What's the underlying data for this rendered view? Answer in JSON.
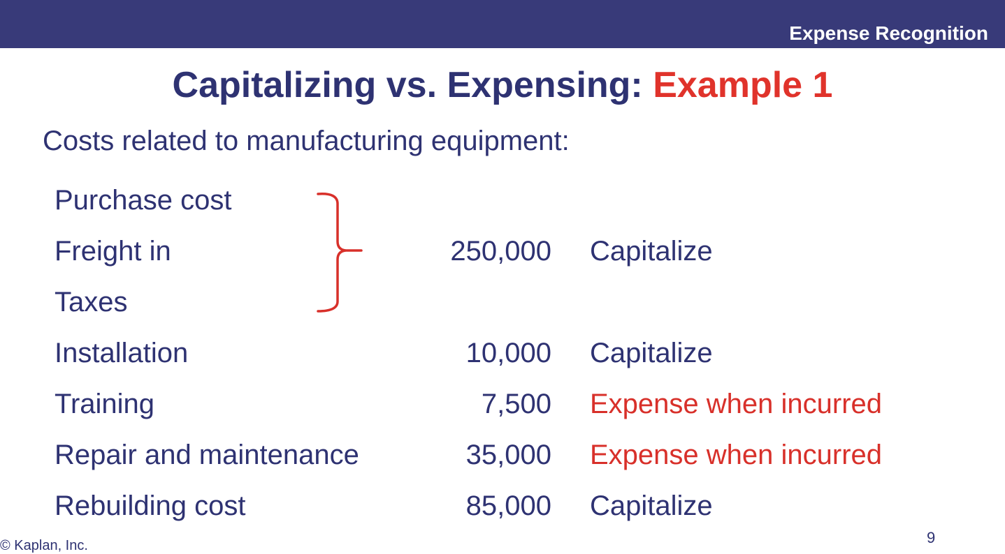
{
  "header": {
    "section_label": "Expense Recognition"
  },
  "slide": {
    "title_main": "Capitalizing vs. Expensing: ",
    "title_highlight": "Example 1",
    "subtitle": "Costs related to manufacturing equipment:"
  },
  "rows": [
    {
      "label": "Purchase cost",
      "amount": "",
      "treatment": ""
    },
    {
      "label": "Freight in",
      "amount": "250,000",
      "treatment": "Capitalize"
    },
    {
      "label": "Taxes",
      "amount": "",
      "treatment": ""
    },
    {
      "label": "Installation",
      "amount": "10,000",
      "treatment": "Capitalize"
    },
    {
      "label": "Training",
      "amount": "7,500",
      "treatment": "Expense when incurred"
    },
    {
      "label": "Repair and maintenance",
      "amount": "35,000",
      "treatment": "Expense when incurred"
    },
    {
      "label": "Rebuilding cost",
      "amount": "85,000",
      "treatment": "Capitalize"
    }
  ],
  "footer": {
    "copyright": "© Kaplan, Inc.",
    "page_number": "9"
  },
  "colors": {
    "header_bar": "#383a79",
    "text_primary": "#2e3272",
    "accent_red": "#e0332b"
  }
}
